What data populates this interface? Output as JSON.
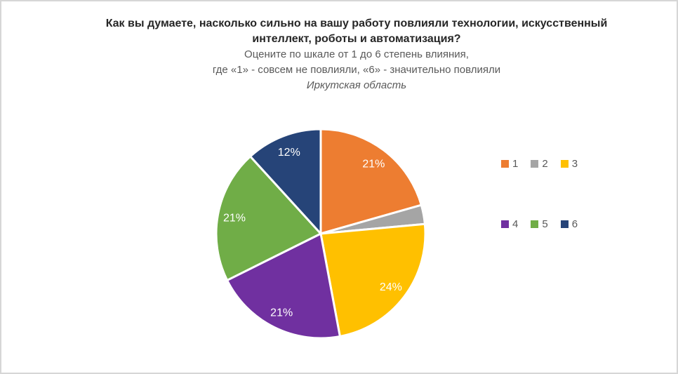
{
  "frame": {
    "background": "#ffffff",
    "border_color": "#d6d6d6"
  },
  "header": {
    "title_line1": "Как вы думаете, насколько сильно на вашу работу повлияли технологии, искусственный",
    "title_line2": "интеллект, роботы и автоматизация?",
    "subtitle_line1": "Оцените по шкале от 1 до 6 степень влияния,",
    "subtitle_line2": "где «1» - совсем не повлияли, «6» - значительно повлияли",
    "region": "Иркутская область"
  },
  "chart_data": {
    "type": "pie",
    "title": "Как вы думаете, насколько сильно на вашу работу повлияли технологии, искусственный интеллект, роботы и автоматизация?",
    "subtitle": "Оцените по шкале от 1 до 6 степень влияния, где «1» - совсем не повлияли, «6» - значительно повлияли",
    "region": "Иркутская область",
    "categories": [
      "1",
      "2",
      "3",
      "4",
      "5",
      "6"
    ],
    "values": [
      21,
      3,
      24,
      21,
      21,
      12
    ],
    "data_labels": [
      "21%",
      "",
      "24%",
      "21%",
      "21%",
      "12%"
    ],
    "colors": [
      "#ED7D31",
      "#A5A5A5",
      "#FFC000",
      "#7030A0",
      "#70AD47",
      "#264478"
    ],
    "label_color": "#FFFFFF",
    "start_angle_deg": 0,
    "direction": "clockwise",
    "legend": {
      "position": "right",
      "rows": [
        [
          "1",
          "2",
          "3"
        ],
        [
          "4",
          "5",
          "6"
        ]
      ]
    }
  }
}
